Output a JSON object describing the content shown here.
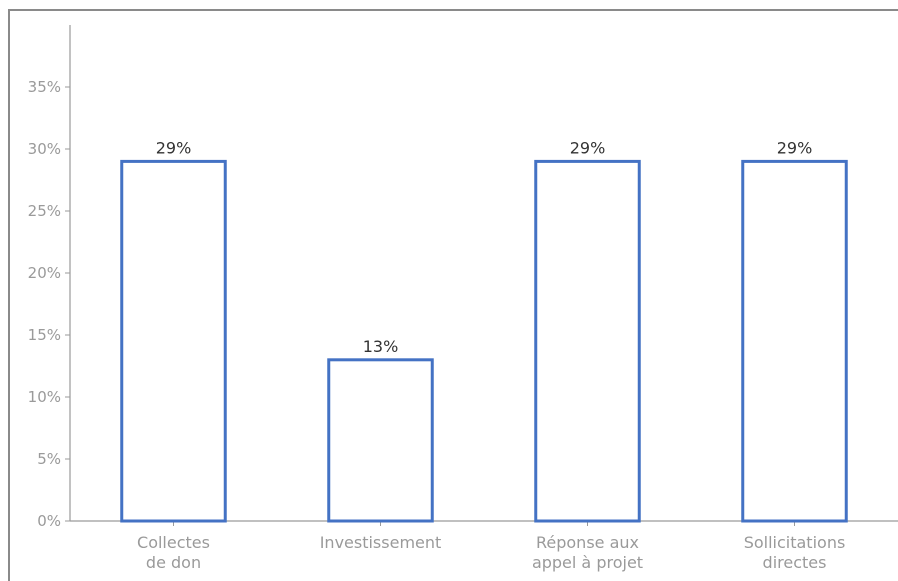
{
  "chart_data": {
    "type": "bar",
    "title": "",
    "xlabel": "",
    "ylabel": "",
    "categories": [
      [
        "Collectes",
        "de don"
      ],
      [
        "Investissement"
      ],
      [
        "Réponse aux",
        "appel à projet"
      ],
      [
        "Sollicitations",
        "directes"
      ]
    ],
    "values": [
      29,
      13,
      29,
      29
    ],
    "data_labels": [
      "29%",
      "13%",
      "29%",
      "29%"
    ],
    "ylim": [
      0,
      40
    ],
    "yticks": [
      0,
      5,
      10,
      15,
      20,
      25,
      30,
      35
    ],
    "ytick_labels": [
      "0%",
      "5%",
      "10%",
      "15%",
      "20%",
      "25%",
      "30%",
      "35%"
    ],
    "bar_fill": "#ffffff",
    "bar_stroke": "#4472c4",
    "axis_color": "#9a9a9a",
    "grid": false,
    "legend": "none"
  }
}
